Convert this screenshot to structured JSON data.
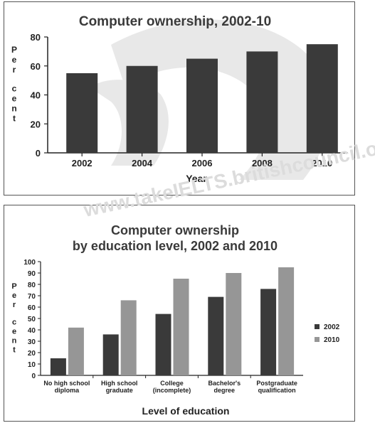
{
  "watermark": "www.takeIELTS.britishcouncil.org",
  "chart_data": [
    {
      "type": "bar",
      "title": "Computer ownership, 2002-10",
      "xlabel": "Year",
      "ylabel": "Per cent",
      "categories": [
        "2002",
        "2004",
        "2006",
        "2008",
        "2010"
      ],
      "values": [
        55,
        60,
        65,
        70,
        75
      ],
      "ylim": [
        0,
        80
      ],
      "yticks": [
        0,
        20,
        40,
        60,
        80
      ],
      "grid": false,
      "colors": [
        "#3a3a3a"
      ]
    },
    {
      "type": "bar",
      "title": [
        "Computer ownership",
        "by education level, 2002 and 2010"
      ],
      "xlabel": "Level of education",
      "ylabel": "Per cent",
      "categories": [
        [
          "No high school",
          "diploma"
        ],
        [
          "High school",
          "graduate"
        ],
        [
          "College",
          "(incomplete)"
        ],
        [
          "Bachelor's",
          "degree"
        ],
        [
          "Postgraduate",
          "qualification"
        ]
      ],
      "series": [
        {
          "name": "2002",
          "values": [
            15,
            36,
            54,
            69,
            76
          ],
          "color": "#3a3a3a"
        },
        {
          "name": "2010",
          "values": [
            42,
            66,
            85,
            90,
            95
          ],
          "color": "#969696"
        }
      ],
      "ylim": [
        0,
        100
      ],
      "yticks": [
        0,
        10,
        20,
        30,
        40,
        50,
        60,
        70,
        80,
        90,
        100
      ],
      "legend": "right",
      "grid": false
    }
  ]
}
